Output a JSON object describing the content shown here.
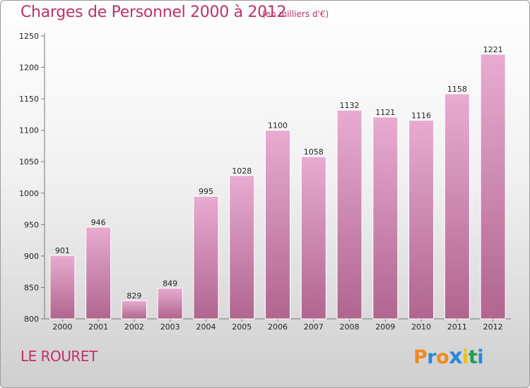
{
  "header": {
    "title": "Charges de Personnel 2000 à 2012",
    "subtitle": "(en milliers d'€)"
  },
  "footer": {
    "place": "LE ROURET",
    "logo": "Proxiti"
  },
  "colors": {
    "accent": "#c0306a",
    "bar_light": "#e6a8cc",
    "bar_dark": "#b3658f",
    "logo_letters": [
      "#f08a1c",
      "#2b88d8",
      "#f08a1c",
      "#2b88d8",
      "#e8c21b",
      "#1e9e4a",
      "#2b88d8"
    ]
  },
  "chart_data": {
    "type": "bar",
    "title": "Charges de Personnel 2000 à 2012",
    "subtitle": "(en milliers d'€)",
    "categories": [
      "2000",
      "2001",
      "2002",
      "2003",
      "2004",
      "2005",
      "2006",
      "2007",
      "2008",
      "2009",
      "2010",
      "2011",
      "2012"
    ],
    "values": [
      901,
      946,
      829,
      849,
      995,
      1028,
      1100,
      1058,
      1132,
      1121,
      1116,
      1158,
      1221
    ],
    "ylim": [
      800,
      1250
    ],
    "yticks": [
      800,
      850,
      900,
      950,
      1000,
      1050,
      1100,
      1150,
      1200,
      1250
    ],
    "grid": false,
    "legend": "none"
  }
}
